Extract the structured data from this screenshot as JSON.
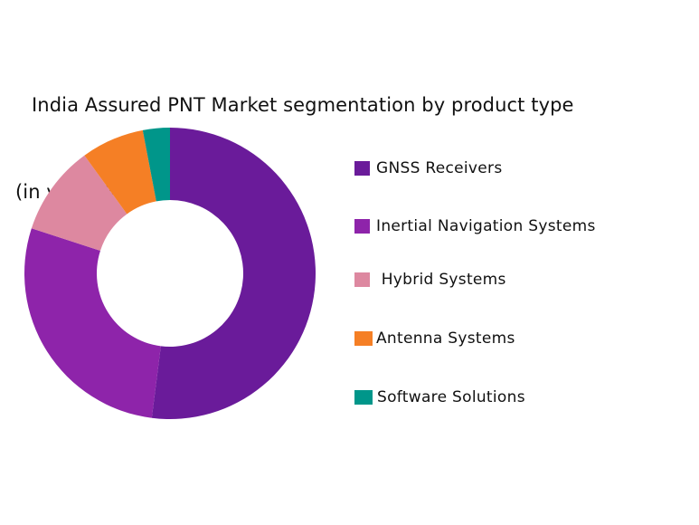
{
  "title": {
    "line1": "India Assured PNT Market segmentation by product type",
    "line2": "(in value %)"
  },
  "chart_data": {
    "type": "pie",
    "subtype": "donut",
    "title": "India Assured PNT Market segmentation by product type (in value %)",
    "categories": [
      "GNSS Receivers",
      "Inertial Navigation Systems",
      "Hybrid Systems",
      "Antenna Systems",
      "Software Solutions"
    ],
    "values": [
      52,
      28,
      10,
      7,
      3
    ],
    "colors": [
      "#6A1B9A",
      "#8E24AA",
      "#DD88A0",
      "#F57F25",
      "#00968A"
    ],
    "unit": "%",
    "start_angle": "12 o'clock, clockwise",
    "legend_position": "right"
  },
  "legend": {
    "items": [
      {
        "label": "GNSS Receivers",
        "color": "#6A1B9A"
      },
      {
        "label": "Inertial Navigation Systems",
        "color": "#8E24AA"
      },
      {
        "label": " Hybrid Systems",
        "color": "#DD88A0"
      },
      {
        "label": "Antenna Systems",
        "color": "#F57F25"
      },
      {
        "label": "Software Solutions",
        "color": "#00968A"
      }
    ]
  }
}
